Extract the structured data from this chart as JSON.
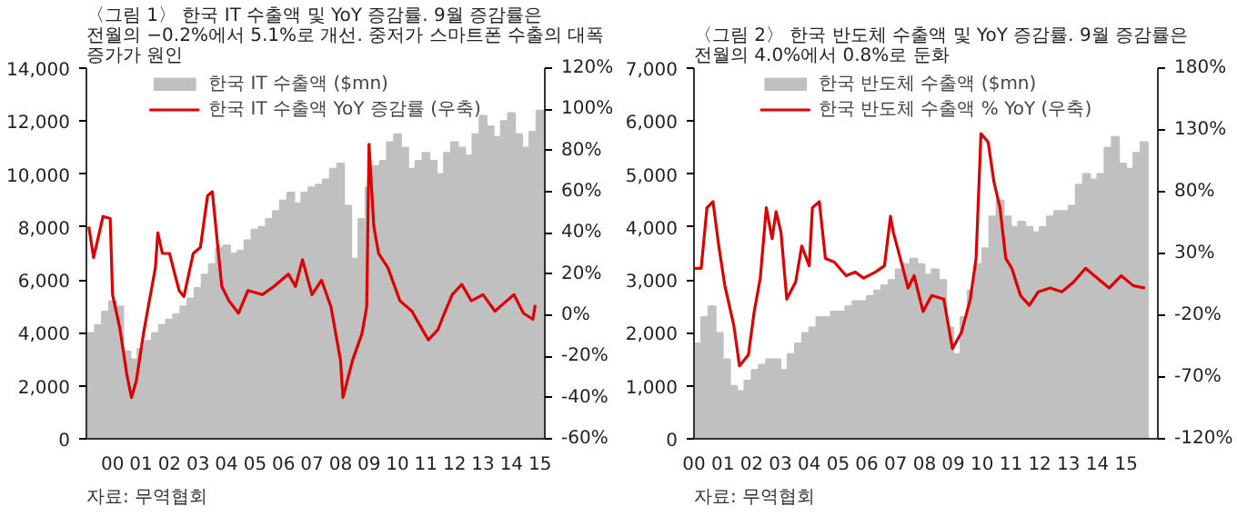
{
  "chart_data": [
    {
      "type": "bar",
      "title": "〈그림 1〉 한국 IT 수출액 및 YoY 증감률. 9월 증감률은 전월의 −0.2%에서 5.1%로 개선. 중저가 스마트폰 수출의 대폭 증가가 원인",
      "annotations": [
        "자료: 무역협회"
      ],
      "legend": "top",
      "grid": false,
      "xlim": [
        "1999-08",
        "2015-09"
      ],
      "xticks": [
        {
          "value": "2000-07",
          "label": "00"
        },
        {
          "value": "2001-07",
          "label": "01"
        },
        {
          "value": "2002-07",
          "label": "02"
        },
        {
          "value": "2003-07",
          "label": "03"
        },
        {
          "value": "2004-07",
          "label": "04"
        },
        {
          "value": "2005-07",
          "label": "05"
        },
        {
          "value": "2006-07",
          "label": "06"
        },
        {
          "value": "2007-07",
          "label": "07"
        },
        {
          "value": "2008-07",
          "label": "08"
        },
        {
          "value": "2009-07",
          "label": "09"
        },
        {
          "value": "2010-07",
          "label": "10"
        },
        {
          "value": "2011-07",
          "label": "11"
        },
        {
          "value": "2012-07",
          "label": "12"
        },
        {
          "value": "2013-07",
          "label": "13"
        },
        {
          "value": "2014-07",
          "label": "14"
        },
        {
          "value": "2015-07",
          "label": "15"
        }
      ],
      "ylim": [
        0,
        14000
      ],
      "yticks": [
        {
          "value": 0,
          "label": "0"
        },
        {
          "value": 2000,
          "label": "2,000"
        },
        {
          "value": 4000,
          "label": "4,000"
        },
        {
          "value": 6000,
          "label": "6,000"
        },
        {
          "value": 8000,
          "label": "8,000"
        },
        {
          "value": 10000,
          "label": "10,000"
        },
        {
          "value": 12000,
          "label": "12,000"
        },
        {
          "value": 14000,
          "label": "14,000"
        }
      ],
      "y2lim": [
        -60,
        120
      ],
      "y2ticks": [
        {
          "value": -60,
          "label": "-60%"
        },
        {
          "value": -40,
          "label": "-40%"
        },
        {
          "value": -20,
          "label": "-20%"
        },
        {
          "value": 0,
          "label": "0%"
        },
        {
          "value": 20,
          "label": "20%"
        },
        {
          "value": 40,
          "label": "40%"
        },
        {
          "value": 60,
          "label": "60%"
        },
        {
          "value": 80,
          "label": "80%"
        },
        {
          "value": 100,
          "label": "100%"
        },
        {
          "value": 120,
          "label": "120%"
        }
      ],
      "series": [
        {
          "name": "한국 IT 수출액 ($mn)",
          "color": "#c0c0c0",
          "x": [
            "1999-10",
            "2000-01",
            "2000-04",
            "2000-07",
            "2000-10",
            "2001-01",
            "2001-04",
            "2001-07",
            "2001-10",
            "2002-01",
            "2002-04",
            "2002-07",
            "2002-10",
            "2003-01",
            "2003-04",
            "2003-07",
            "2003-10",
            "2004-01",
            "2004-04",
            "2004-07",
            "2004-10",
            "2005-01",
            "2005-04",
            "2005-07",
            "2005-10",
            "2006-01",
            "2006-04",
            "2006-07",
            "2006-10",
            "2007-01",
            "2007-04",
            "2007-07",
            "2007-10",
            "2008-01",
            "2008-04",
            "2008-07",
            "2008-10",
            "2009-01",
            "2009-04",
            "2009-07",
            "2009-10",
            "2010-01",
            "2010-04",
            "2010-07",
            "2010-10",
            "2011-01",
            "2011-04",
            "2011-07",
            "2011-10",
            "2012-01",
            "2012-04",
            "2012-07",
            "2012-10",
            "2013-01",
            "2013-04",
            "2013-07",
            "2013-10",
            "2014-01",
            "2014-04",
            "2014-07",
            "2014-10",
            "2015-01",
            "2015-04",
            "2015-07"
          ],
          "values": [
            4000,
            4300,
            4800,
            5200,
            5000,
            3300,
            3000,
            3400,
            3700,
            4000,
            4300,
            4500,
            4700,
            5000,
            5300,
            5700,
            6200,
            6600,
            7200,
            7300,
            7000,
            7100,
            7500,
            7900,
            8000,
            8300,
            8600,
            9000,
            9300,
            8900,
            9300,
            9500,
            9600,
            9800,
            10200,
            10400,
            8800,
            6800,
            8300,
            9500,
            10300,
            10500,
            11200,
            11500,
            11000,
            10200,
            10500,
            10800,
            10500,
            10000,
            10800,
            11200,
            11000,
            10700,
            11500,
            12200,
            11800,
            11400,
            12000,
            12300,
            11500,
            11000,
            11600,
            12400
          ]
        },
        {
          "name": "한국 IT 수출액 YoY 증감률 (우축)",
          "type": "line",
          "axis": "y2",
          "color": "#e00000",
          "x": [
            "1999-09",
            "1999-11",
            "2000-03",
            "2000-06",
            "2000-07",
            "2000-10",
            "2001-01",
            "2001-03",
            "2001-05",
            "2001-08",
            "2001-10",
            "2002-01",
            "2002-02",
            "2002-04",
            "2002-07",
            "2002-11",
            "2003-01",
            "2003-05",
            "2003-08",
            "2003-11",
            "2004-01",
            "2004-03",
            "2004-05",
            "2004-08",
            "2004-12",
            "2005-04",
            "2005-10",
            "2006-03",
            "2006-09",
            "2006-12",
            "2007-03",
            "2007-07",
            "2007-11",
            "2008-03",
            "2008-07",
            "2008-08",
            "2008-12",
            "2009-04",
            "2009-06",
            "2009-07",
            "2009-09",
            "2009-11",
            "2010-03",
            "2010-08",
            "2011-01",
            "2011-05",
            "2011-08",
            "2011-12",
            "2012-02",
            "2012-06",
            "2012-10",
            "2013-02",
            "2013-07",
            "2013-12",
            "2014-04",
            "2014-08",
            "2014-12",
            "2015-04",
            "2015-05"
          ],
          "values": [
            43,
            28,
            48,
            47,
            10,
            -6,
            -29,
            -40,
            -32,
            -9,
            4,
            23,
            40,
            30,
            30,
            12,
            9,
            30,
            33,
            58,
            60,
            37,
            14,
            7,
            1,
            12,
            10,
            14,
            20,
            14,
            27,
            10,
            17,
            4,
            -22,
            -40,
            -22,
            -9,
            4,
            83,
            43,
            30,
            23,
            7,
            2,
            -6,
            -12,
            -7,
            -1,
            10,
            15,
            7,
            10,
            2,
            6,
            10,
            1,
            -2,
            5
          ]
        }
      ]
    },
    {
      "type": "bar",
      "title": "〈그림 2〉 한국 반도체 수출액 및 YoY 증감률. 9월 증감률은 전월의 4.0%에서 0.8%로 둔화",
      "annotations": [
        "자료: 무역협회"
      ],
      "legend": "top",
      "grid": false,
      "xlim": [
        2000.0,
        2016.1
      ],
      "xticks": [
        {
          "value": 2000,
          "label": "00"
        },
        {
          "value": 2001,
          "label": "01"
        },
        {
          "value": 2002,
          "label": "02"
        },
        {
          "value": 2003,
          "label": "03"
        },
        {
          "value": 2004,
          "label": "04"
        },
        {
          "value": 2005,
          "label": "05"
        },
        {
          "value": 2006,
          "label": "06"
        },
        {
          "value": 2007,
          "label": "07"
        },
        {
          "value": 2008,
          "label": "08"
        },
        {
          "value": 2009,
          "label": "09"
        },
        {
          "value": 2010,
          "label": "10"
        },
        {
          "value": 2011,
          "label": "11"
        },
        {
          "value": 2012,
          "label": "12"
        },
        {
          "value": 2013,
          "label": "13"
        },
        {
          "value": 2014,
          "label": "14"
        },
        {
          "value": 2015,
          "label": "15"
        }
      ],
      "ylim": [
        0,
        7000
      ],
      "yticks": [
        {
          "value": 0,
          "label": "0"
        },
        {
          "value": 1000,
          "label": "1,000"
        },
        {
          "value": 2000,
          "label": "2,000"
        },
        {
          "value": 3000,
          "label": "3,000"
        },
        {
          "value": 4000,
          "label": "4,000"
        },
        {
          "value": 5000,
          "label": "5,000"
        },
        {
          "value": 6000,
          "label": "6,000"
        },
        {
          "value": 7000,
          "label": "7,000"
        }
      ],
      "y2lim": [
        -120,
        180
      ],
      "y2ticks": [
        {
          "value": -120,
          "label": "-120%"
        },
        {
          "value": -70,
          "label": "-70%"
        },
        {
          "value": -20,
          "label": "-20%"
        },
        {
          "value": 30,
          "label": "30%"
        },
        {
          "value": 80,
          "label": "80%"
        },
        {
          "value": 130,
          "label": "130%"
        },
        {
          "value": 180,
          "label": "180%"
        }
      ],
      "series": [
        {
          "name": "한국 반도체 수출액 ($mn)",
          "color": "#c0c0c0",
          "x": [
            2000.125,
            2000.375,
            2000.625,
            2000.875,
            2001.125,
            2001.375,
            2001.625,
            2001.875,
            2002.125,
            2002.375,
            2002.625,
            2002.875,
            2003.125,
            2003.375,
            2003.625,
            2003.875,
            2004.125,
            2004.375,
            2004.625,
            2004.875,
            2005.125,
            2005.375,
            2005.625,
            2005.875,
            2006.125,
            2006.375,
            2006.625,
            2006.875,
            2007.125,
            2007.375,
            2007.625,
            2007.875,
            2008.125,
            2008.375,
            2008.625,
            2008.875,
            2009.125,
            2009.375,
            2009.625,
            2009.875,
            2010.125,
            2010.375,
            2010.625,
            2010.875,
            2011.125,
            2011.375,
            2011.625,
            2011.875,
            2012.125,
            2012.375,
            2012.625,
            2012.875,
            2013.125,
            2013.375,
            2013.625,
            2013.875,
            2014.125,
            2014.375,
            2014.625,
            2014.875,
            2015.125,
            2015.375,
            2015.625
          ],
          "values": [
            1800,
            2300,
            2500,
            2000,
            1500,
            1000,
            900,
            1100,
            1300,
            1400,
            1500,
            1500,
            1300,
            1600,
            1800,
            2000,
            2100,
            2300,
            2300,
            2400,
            2400,
            2500,
            2600,
            2600,
            2700,
            2800,
            2900,
            3000,
            3200,
            3300,
            3400,
            3300,
            3100,
            3200,
            3000,
            2100,
            1600,
            2300,
            2800,
            3300,
            3600,
            4200,
            4500,
            4200,
            4000,
            4100,
            4000,
            3900,
            4000,
            4200,
            4300,
            4300,
            4400,
            4800,
            5000,
            4900,
            5000,
            5500,
            5700,
            5200,
            5100,
            5400,
            5600
          ]
        },
        {
          "name": "한국 반도체 수출액 % YoY (우축)",
          "type": "line",
          "axis": "y2",
          "color": "#e00000",
          "x": [
            2000.0,
            2000.25,
            2000.45,
            2000.66,
            2000.86,
            2001.07,
            2001.38,
            2001.58,
            2001.89,
            2002.09,
            2002.3,
            2002.51,
            2002.71,
            2002.85,
            2003.02,
            2003.22,
            2003.53,
            2003.74,
            2004.0,
            2004.11,
            2004.35,
            2004.56,
            2004.87,
            2005.28,
            2005.59,
            2005.89,
            2006.3,
            2006.61,
            2006.82,
            2006.92,
            2007.23,
            2007.43,
            2007.64,
            2007.95,
            2008.25,
            2008.67,
            2008.97,
            2009.28,
            2009.59,
            2009.79,
            2009.96,
            2010.21,
            2010.41,
            2010.62,
            2010.82,
            2011.03,
            2011.33,
            2011.64,
            2011.95,
            2012.36,
            2012.77,
            2013.18,
            2013.59,
            2014.0,
            2014.41,
            2014.83,
            2015.24,
            2015.65
          ],
          "values": [
            18,
            18,
            67,
            72,
            36,
            4,
            -28,
            -61,
            -52,
            -17,
            10,
            67,
            42,
            64,
            47,
            -7,
            7,
            36,
            20,
            67,
            72,
            26,
            23,
            12,
            15,
            10,
            15,
            20,
            60,
            47,
            20,
            2,
            12,
            -17,
            -4,
            -7,
            -47,
            -34,
            -7,
            26,
            127,
            120,
            88,
            67,
            26,
            18,
            -4,
            -12,
            -1,
            2,
            -1,
            7,
            18,
            10,
            2,
            12,
            4,
            2
          ]
        }
      ]
    }
  ]
}
